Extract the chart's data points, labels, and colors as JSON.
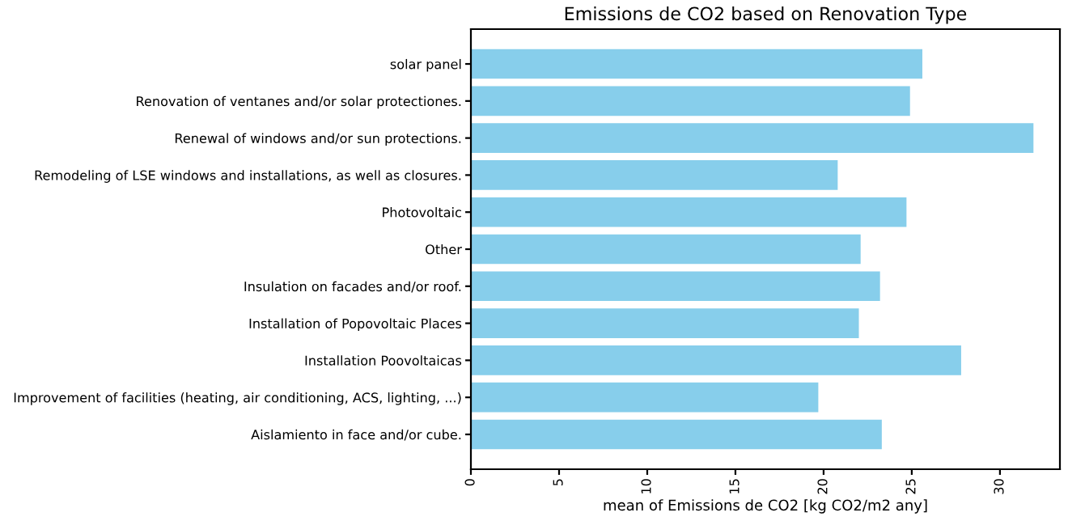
{
  "chart_data": {
    "type": "bar",
    "orientation": "horizontal",
    "title": "Emissions de CO2 based on Renovation Type",
    "xlabel": "mean of Emissions de CO2 [kg CO2/m2 any]",
    "categories": [
      "solar panel",
      "Renovation of ventanes and/or solar protectiones.",
      "Renewal of windows and/or sun protections.",
      "Remodeling of LSE windows and installations, as well as closures.",
      "Photovoltaic",
      "Other",
      "Insulation on facades and/or roof.",
      "Installation of Popovoltaic Places",
      "Installation Poovoltaicas",
      "Improvement of facilities (heating, air conditioning, ACS, lighting, ...)",
      "Aislamiento in face and/or cube."
    ],
    "values": [
      25.6,
      24.9,
      31.9,
      20.8,
      24.7,
      22.1,
      23.2,
      22.0,
      27.8,
      19.7,
      23.3
    ],
    "color": "#87ceeb",
    "xlim": [
      0,
      33.4
    ],
    "xticks": [
      0,
      5,
      10,
      15,
      20,
      25,
      30
    ],
    "grid": false,
    "legend": false
  }
}
